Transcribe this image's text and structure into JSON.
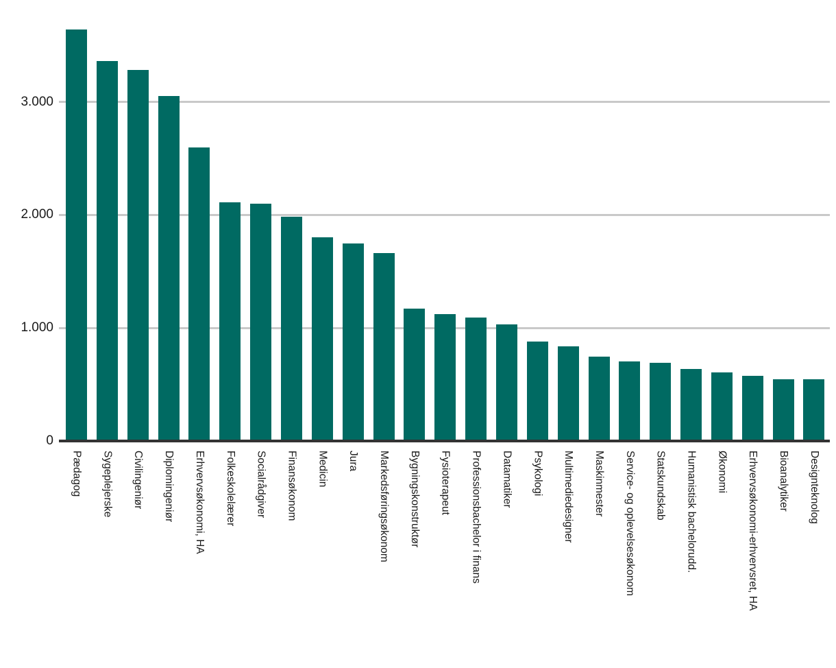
{
  "chart_data": {
    "type": "bar",
    "title": "",
    "xlabel": "",
    "ylabel": "",
    "categories": [
      "Pædagog",
      "Sygeplejerske",
      "Civilingeniør",
      "Diplomingeniør",
      "Erhvervsøkonomi, HA",
      "Folkeskolelærer",
      "Socialrådgiver",
      "Finansøkonom",
      "Medicin",
      "Jura",
      "Markedsføringsøkonom",
      "Bygningskonstruktør",
      "Fysioterapeut",
      "Professionsbachelor i finans",
      "Datamatiker",
      "Psykologi",
      "Multimediedesigner",
      "Maskinmester",
      "Service- og oplevelsesøkonom",
      "Statskundskab",
      "Humanistisk bachelorudd.",
      "Økonomi",
      "Erhvervsøkonomi-erhvervsret, HA",
      "Bioanalytiker",
      "Designteknolog"
    ],
    "values": [
      3640,
      3360,
      3285,
      3050,
      2600,
      2110,
      2100,
      1985,
      1805,
      1745,
      1660,
      1170,
      1120,
      1095,
      1030,
      880,
      835,
      745,
      705,
      690,
      640,
      605,
      575,
      545,
      545
    ],
    "y_axis": {
      "tick_values": [
        0,
        1000,
        2000,
        3000
      ],
      "tick_labels": [
        "0",
        "1.000",
        "2.000",
        "3.000"
      ],
      "number_format": "da-DK dot thousands separator"
    },
    "ylim": [
      0,
      3790
    ],
    "grid": "horizontal",
    "legend": "none",
    "x_label_rotation": "vertical, reads top-to-bottom",
    "bar_color": "#006A62"
  },
  "style": {
    "background_color": "#FFFFFF",
    "grid_color": "#C9C9C9",
    "axis_line_color": "#333333",
    "text_color": "#1A1A1A"
  }
}
